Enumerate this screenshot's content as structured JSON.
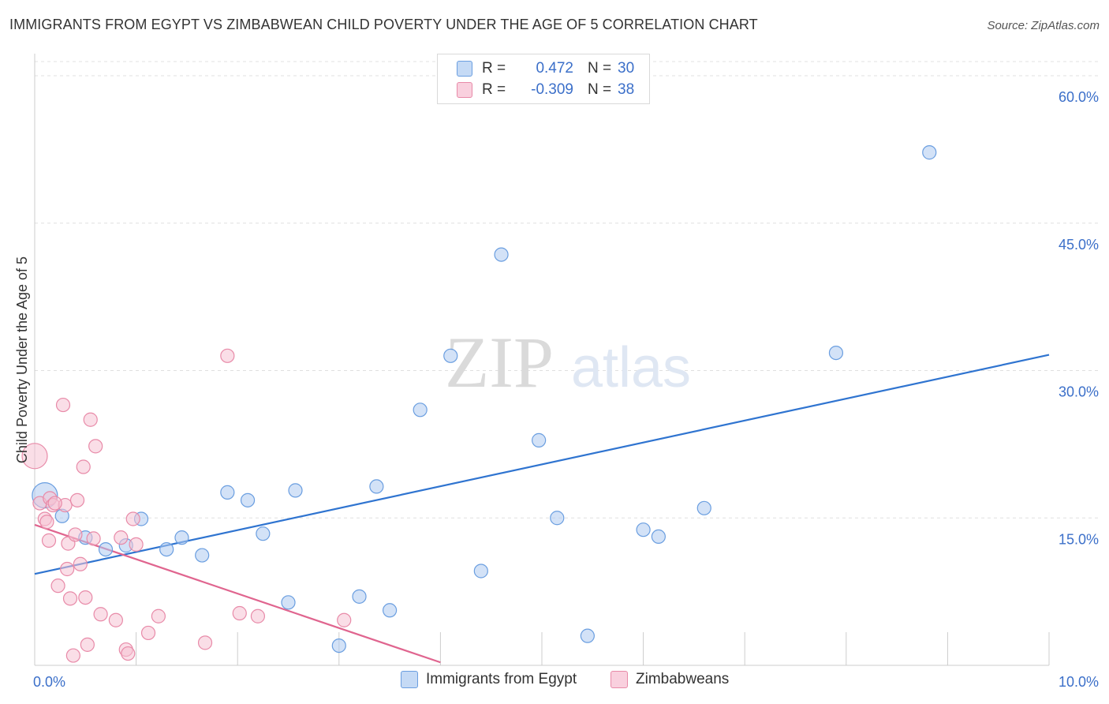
{
  "header": {
    "title": "IMMIGRANTS FROM EGYPT VS ZIMBABWEAN CHILD POVERTY UNDER THE AGE OF 5 CORRELATION CHART",
    "source": "Source: ZipAtlas.com"
  },
  "watermark": {
    "zip": "ZIP",
    "atlas": "atlas"
  },
  "legend_top": {
    "rows": [
      {
        "r_label": "R =",
        "r_value": "0.472",
        "n_label": "N =",
        "n_value": "30"
      },
      {
        "r_label": "R =",
        "r_value": "-0.309",
        "n_label": "N =",
        "n_value": "38"
      }
    ]
  },
  "legend_bottom": {
    "items": [
      {
        "label": "Immigrants from Egypt"
      },
      {
        "label": "Zimbabweans"
      }
    ]
  },
  "colors": {
    "blue_fill": "#aecbf0",
    "blue_stroke": "#6a9ee0",
    "blue_line": "#2f74d0",
    "pink_fill": "#f6c2d3",
    "pink_stroke": "#e88aa8",
    "pink_line": "#e0658f",
    "axis_text": "#3b6fc9",
    "grid": "#e0e0e0"
  },
  "chart_data": {
    "type": "scatter",
    "title": "IMMIGRANTS FROM EGYPT VS ZIMBABWEAN CHILD POVERTY UNDER THE AGE OF 5 CORRELATION CHART",
    "xlabel": "",
    "ylabel": "Child Poverty Under the Age of 5",
    "xlim": [
      0,
      10
    ],
    "ylim": [
      0,
      60
    ],
    "x_tick_labels": [
      "0.0%",
      "10.0%"
    ],
    "y_ticks": [
      15,
      30,
      45,
      60
    ],
    "y_tick_labels": [
      "15.0%",
      "30.0%",
      "45.0%",
      "60.0%"
    ],
    "series": [
      {
        "name": "Immigrants from Egypt",
        "color": "blue",
        "points": [
          {
            "x": 0.1,
            "y": 17.3,
            "big": true
          },
          {
            "x": 0.5,
            "y": 13.0
          },
          {
            "x": 0.7,
            "y": 11.8
          },
          {
            "x": 0.9,
            "y": 12.2
          },
          {
            "x": 1.05,
            "y": 14.9
          },
          {
            "x": 1.3,
            "y": 11.8
          },
          {
            "x": 1.45,
            "y": 13.0
          },
          {
            "x": 1.65,
            "y": 11.2
          },
          {
            "x": 1.9,
            "y": 17.6
          },
          {
            "x": 2.1,
            "y": 16.8
          },
          {
            "x": 2.25,
            "y": 13.4
          },
          {
            "x": 2.57,
            "y": 17.8
          },
          {
            "x": 2.5,
            "y": 6.4
          },
          {
            "x": 3.0,
            "y": 2.0
          },
          {
            "x": 3.2,
            "y": 7.0
          },
          {
            "x": 3.37,
            "y": 18.2
          },
          {
            "x": 3.5,
            "y": 5.6
          },
          {
            "x": 3.8,
            "y": 26.0
          },
          {
            "x": 4.1,
            "y": 31.5
          },
          {
            "x": 4.4,
            "y": 9.6
          },
          {
            "x": 4.6,
            "y": 41.8
          },
          {
            "x": 4.97,
            "y": 22.9
          },
          {
            "x": 5.15,
            "y": 15.0
          },
          {
            "x": 5.45,
            "y": 3.0
          },
          {
            "x": 6.0,
            "y": 13.8
          },
          {
            "x": 6.15,
            "y": 13.1
          },
          {
            "x": 6.6,
            "y": 16.0
          },
          {
            "x": 7.9,
            "y": 31.8
          },
          {
            "x": 8.82,
            "y": 52.2
          },
          {
            "x": 0.27,
            "y": 15.2
          }
        ]
      },
      {
        "name": "Zimbabweans",
        "color": "pink",
        "points": [
          {
            "x": 0.0,
            "y": 21.3,
            "big": true
          },
          {
            "x": 0.05,
            "y": 16.5
          },
          {
            "x": 0.1,
            "y": 14.9
          },
          {
            "x": 0.14,
            "y": 12.7
          },
          {
            "x": 0.15,
            "y": 17.0
          },
          {
            "x": 0.18,
            "y": 16.3
          },
          {
            "x": 0.23,
            "y": 8.1
          },
          {
            "x": 0.28,
            "y": 26.5
          },
          {
            "x": 0.3,
            "y": 16.3
          },
          {
            "x": 0.32,
            "y": 9.8
          },
          {
            "x": 0.33,
            "y": 12.4
          },
          {
            "x": 0.35,
            "y": 6.8
          },
          {
            "x": 0.38,
            "y": 1.0
          },
          {
            "x": 0.4,
            "y": 13.3
          },
          {
            "x": 0.42,
            "y": 16.8
          },
          {
            "x": 0.45,
            "y": 10.3
          },
          {
            "x": 0.48,
            "y": 20.2
          },
          {
            "x": 0.5,
            "y": 6.9
          },
          {
            "x": 0.52,
            "y": 2.1
          },
          {
            "x": 0.55,
            "y": 25.0
          },
          {
            "x": 0.6,
            "y": 22.3
          },
          {
            "x": 0.65,
            "y": 5.2
          },
          {
            "x": 0.8,
            "y": 4.6
          },
          {
            "x": 0.85,
            "y": 13.0
          },
          {
            "x": 0.9,
            "y": 1.6
          },
          {
            "x": 0.92,
            "y": 1.2
          },
          {
            "x": 0.97,
            "y": 14.9
          },
          {
            "x": 1.0,
            "y": 12.3
          },
          {
            "x": 1.12,
            "y": 3.3
          },
          {
            "x": 1.22,
            "y": 5.0
          },
          {
            "x": 1.68,
            "y": 2.3
          },
          {
            "x": 1.9,
            "y": 31.5
          },
          {
            "x": 2.02,
            "y": 5.3
          },
          {
            "x": 2.2,
            "y": 5.0
          },
          {
            "x": 3.05,
            "y": 4.6
          },
          {
            "x": 0.2,
            "y": 16.5
          },
          {
            "x": 0.12,
            "y": 14.6
          },
          {
            "x": 0.58,
            "y": 12.9
          }
        ]
      }
    ],
    "trend_lines": [
      {
        "series": "Immigrants from Egypt",
        "x1": 0.0,
        "y1": 9.3,
        "x2": 10.0,
        "y2": 31.6
      },
      {
        "series": "Zimbabweans",
        "x1": 0.0,
        "y1": 14.3,
        "x2": 4.0,
        "y2": 0.3
      }
    ]
  }
}
